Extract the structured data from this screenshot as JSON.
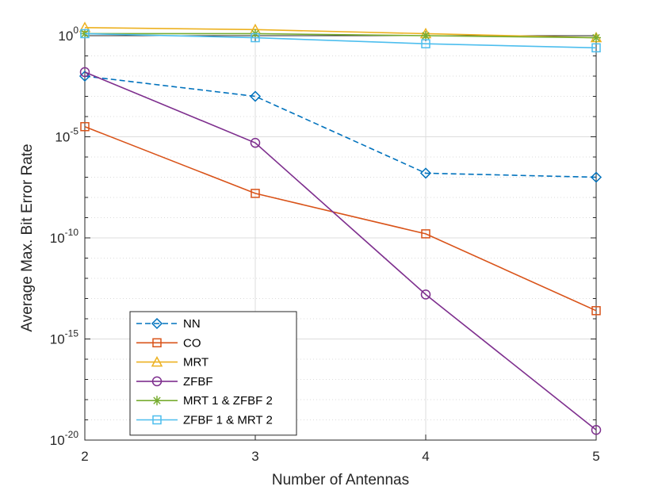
{
  "chart_data": {
    "type": "line",
    "y_scale": "log10",
    "xlabel": "Number of Antennas",
    "ylabel": "Average Max. Bit Error Rate",
    "x": [
      2,
      3,
      4,
      5
    ],
    "xlim": [
      2,
      5
    ],
    "ylim_log10": [
      -20,
      0
    ],
    "x_ticks": [
      2,
      3,
      4,
      5
    ],
    "x_tick_labels": [
      "2",
      "3",
      "4",
      "5"
    ],
    "y_ticks_log10": [
      -20,
      -15,
      -10,
      -5,
      0
    ],
    "y_tick_labels": [
      {
        "base": "10",
        "exp": "-20"
      },
      {
        "base": "10",
        "exp": "-15"
      },
      {
        "base": "10",
        "exp": "-10"
      },
      {
        "base": "10",
        "exp": "-5"
      },
      {
        "base": "10",
        "exp": "0"
      }
    ],
    "grid": true,
    "legend_position": "bottom-left",
    "series": [
      {
        "name": "NN",
        "color": "#0072BD",
        "dash": "dashed",
        "marker": "diamond",
        "log10_values": [
          -2.0,
          -3.0,
          -6.8,
          -7.0
        ]
      },
      {
        "name": "CO",
        "color": "#D95319",
        "dash": "solid",
        "marker": "square",
        "log10_values": [
          -4.5,
          -7.8,
          -9.8,
          -13.6
        ]
      },
      {
        "name": "MRT",
        "color": "#EDB120",
        "dash": "solid",
        "marker": "triangle",
        "log10_values": [
          0.4,
          0.3,
          0.1,
          -0.1
        ]
      },
      {
        "name": "ZFBF",
        "color": "#7E2F8E",
        "dash": "solid",
        "marker": "circle",
        "log10_values": [
          -1.8,
          -5.3,
          -12.8,
          -19.5
        ]
      },
      {
        "name": "MRT 1 & ZFBF 2",
        "color": "#77AC30",
        "dash": "solid",
        "marker": "asterisk",
        "log10_values": [
          0.1,
          0.1,
          0.0,
          -0.1
        ]
      },
      {
        "name": "ZFBF 1 & MRT 2",
        "color": "#4DBEEE",
        "dash": "solid",
        "marker": "square",
        "log10_values": [
          0.1,
          -0.1,
          -0.4,
          -0.6
        ]
      }
    ]
  }
}
